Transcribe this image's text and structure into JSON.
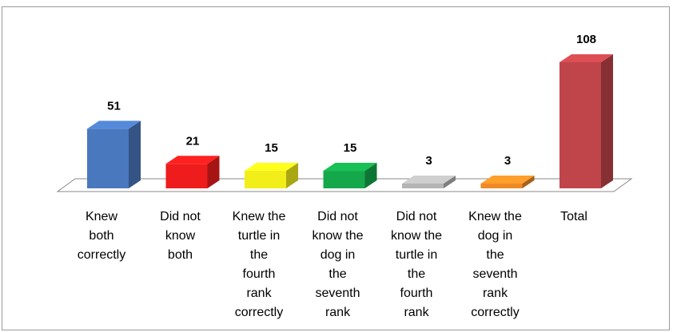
{
  "chart_data": {
    "type": "bar",
    "style": "3d-column",
    "categories": [
      [
        "Knew",
        "both",
        "correctly"
      ],
      [
        "Did not",
        "know",
        "both"
      ],
      [
        "Knew the",
        "turtle in",
        "the",
        "fourth",
        "rank",
        "correctly"
      ],
      [
        "Did not",
        "know the",
        "dog in",
        "the",
        "seventh",
        "rank"
      ],
      [
        "Did not",
        "know the",
        "turtle in",
        "the",
        "fourth",
        "rank"
      ],
      [
        "Knew the",
        "dog in",
        "the",
        "seventh",
        "rank",
        "correctly"
      ],
      [
        "Total"
      ]
    ],
    "values": [
      51,
      21,
      15,
      15,
      3,
      3,
      108
    ],
    "value_labels": [
      "51",
      "21",
      "15",
      "15",
      "3",
      "3",
      "108"
    ],
    "colors": [
      "#4a78be",
      "#ee1c1c",
      "#f2ee1a",
      "#14a84a",
      "#b4b4b4",
      "#ee8a26",
      "#c0454a"
    ],
    "ylim": [
      0,
      108
    ],
    "grid": false,
    "legend": "none"
  }
}
